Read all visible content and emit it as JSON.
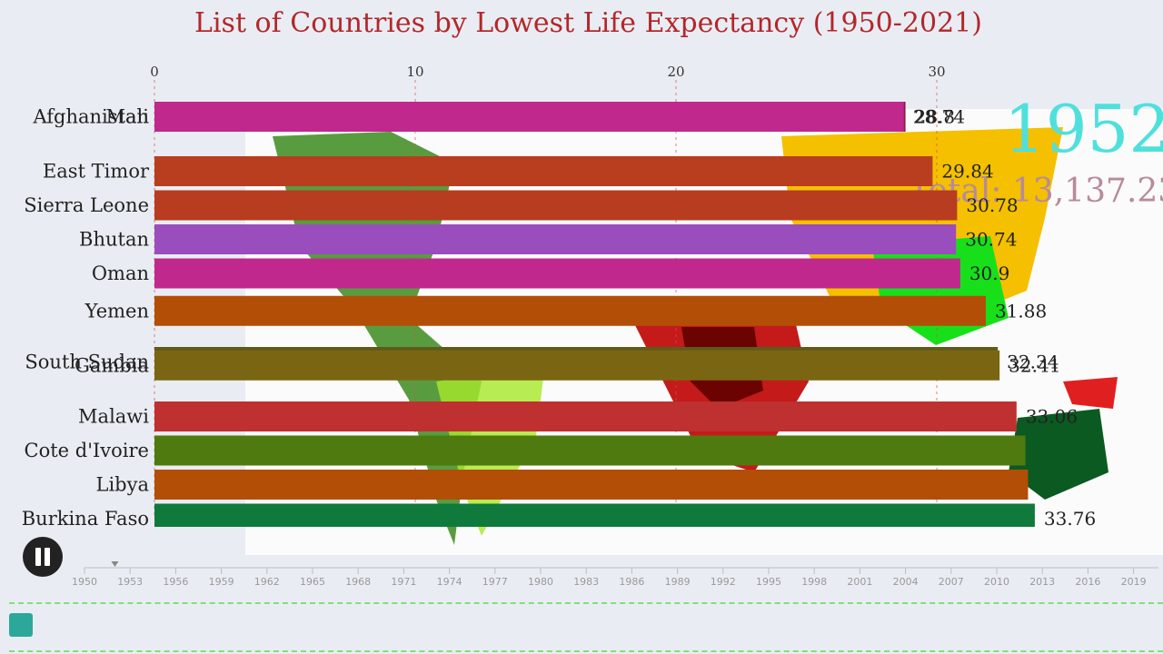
{
  "title": "List of Countries by Lowest Life Expectancy (1950-2021)",
  "overlay": {
    "year": "1952",
    "total": "Total: 13,137.23"
  },
  "colors": {
    "title": "#b3272a",
    "year": "#4fe0dc",
    "total": "#b78a9c",
    "map_bg": "#fbfbfb"
  },
  "controls": {
    "pause_icon": "pause-icon"
  },
  "chart_data": {
    "type": "bar",
    "orientation": "horizontal",
    "xlim": [
      0,
      35
    ],
    "ticks": [
      0,
      10,
      20,
      30
    ],
    "grid": true,
    "bars": [
      {
        "name": "Afghanistan",
        "value": 28.8,
        "value_label": "28.8",
        "color": "#8c1a3c",
        "rank": 0
      },
      {
        "name": "Mali",
        "value": 28.74,
        "value_label": "28.74",
        "color": "#c0288e",
        "rank": 0
      },
      {
        "name": "East Timor",
        "value": 29.84,
        "value_label": "29.84",
        "color": "#b83e1f",
        "rank": 1.6
      },
      {
        "name": "Sierra Leone",
        "value": 30.78,
        "value_label": "30.78",
        "color": "#b83c20",
        "rank": 2.6
      },
      {
        "name": "Bhutan",
        "value": 30.74,
        "value_label": "30.74",
        "color": "#9a4dbd",
        "rank": 3.6
      },
      {
        "name": "Oman",
        "value": 30.9,
        "value_label": "30.9",
        "color": "#c0288e",
        "rank": 4.6
      },
      {
        "name": "Yemen",
        "value": 31.88,
        "value_label": "31.88",
        "color": "#b34e07",
        "rank": 5.7
      },
      {
        "name": "South Sudan",
        "value": 32.34,
        "value_label": "32.34",
        "color": "#5f5a1a",
        "rank": 7.2
      },
      {
        "name": "Gambia",
        "value": 32.41,
        "value_label": "32.41",
        "color": "#7a6612",
        "rank": 7.3
      },
      {
        "name": "Malawi",
        "value": 33.06,
        "value_label": "33.06",
        "color": "#bf3030",
        "rank": 8.8
      },
      {
        "name": "Cote d'Ivoire",
        "value": 33.4,
        "value_label": "",
        "color": "#4e7a0f",
        "rank": 9.8
      },
      {
        "name": "Libya",
        "value": 33.5,
        "value_label": "",
        "color": "#b34e07",
        "rank": 10.8
      },
      {
        "name": "Burkina Faso",
        "value": 33.76,
        "value_label": "33.76",
        "color": "#0f7a3c",
        "rank": 11.8
      }
    ]
  },
  "timeline": {
    "years": [
      "1950",
      "1953",
      "1956",
      "1959",
      "1962",
      "1965",
      "1968",
      "1971",
      "1974",
      "1977",
      "1980",
      "1983",
      "1986",
      "1989",
      "1992",
      "1995",
      "1998",
      "2001",
      "2004",
      "2007",
      "2010",
      "2013",
      "2016",
      "2019"
    ],
    "current": 1952
  }
}
